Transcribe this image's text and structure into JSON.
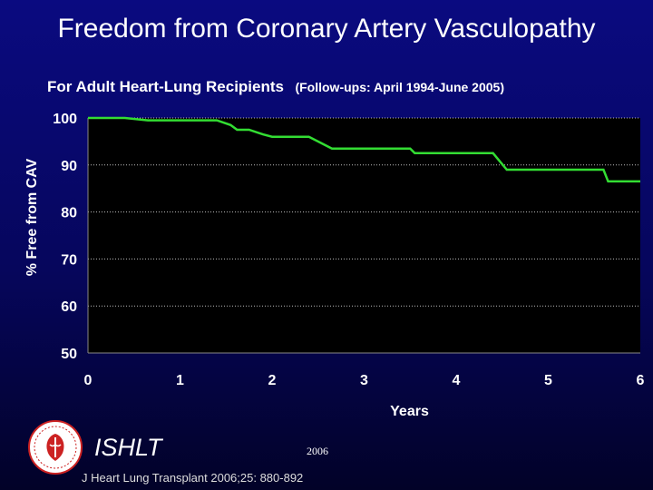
{
  "title": "Freedom from Coronary Artery Vasculopathy",
  "subtitle": "For Adult Heart-Lung Recipients",
  "subtitle_note": "(Follow-ups: April 1994-June 2005)",
  "footer": {
    "org": "ISHLT",
    "year": "2006",
    "citation": "J Heart Lung Transplant 2006;25: 880-892"
  },
  "colors": {
    "line": "#33dd33",
    "plot_background": "#000000",
    "page_background": "#06065c"
  },
  "chart_data": {
    "type": "line",
    "title": "Freedom from Coronary Artery Vasculopathy",
    "xlabel": "Years",
    "ylabel": "% Free from CAV",
    "xlim": [
      0,
      6
    ],
    "ylim": [
      50,
      100
    ],
    "x_ticks": [
      0,
      1,
      2,
      3,
      4,
      5,
      6
    ],
    "y_ticks": [
      50,
      60,
      70,
      80,
      90,
      100
    ],
    "grid": "horizontal dotted",
    "legend": "none",
    "series": [
      {
        "step": true,
        "x": [
          0,
          0.4,
          0.65,
          1.4,
          1.55,
          1.62,
          1.75,
          1.9,
          2.0,
          2.4,
          2.65,
          3.5,
          3.55,
          4.4,
          4.55,
          5.6,
          5.65,
          6.0
        ],
        "y": [
          100,
          100,
          99.5,
          99.5,
          98.5,
          97.5,
          97.5,
          96.5,
          96,
          96,
          93.5,
          93.5,
          92.5,
          92.5,
          89,
          89,
          86.5,
          86.5
        ]
      }
    ]
  }
}
